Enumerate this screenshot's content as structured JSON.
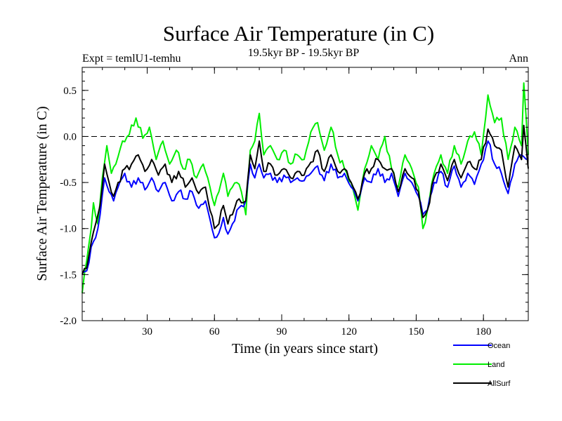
{
  "chart_data": {
    "type": "line",
    "title": "Surface Air Temperature (in C)",
    "subtitle_left": "Expt = temlU1-temhu",
    "subtitle_center": "19.5kyr BP - 19.5kyr BP",
    "subtitle_right": "Ann",
    "xlabel": "Time (in years since start)",
    "ylabel": "Surface Air Temperature (in C)",
    "xlim": [
      1,
      200
    ],
    "ylim": [
      -2.0,
      0.75
    ],
    "xticks": [
      30,
      60,
      90,
      120,
      150,
      180
    ],
    "xtick_labels": [
      "30",
      "60",
      "90",
      "120",
      "150",
      "180"
    ],
    "yticks": [
      -2.0,
      -1.5,
      -1.0,
      -0.5,
      0.0,
      0.5
    ],
    "ytick_labels": [
      "-2.0",
      "-1.5",
      "-1.0",
      "-0.5",
      "0.0",
      "0.5"
    ],
    "reference_line": 0.0,
    "legend_position": "bottom-right",
    "series": [
      {
        "name": "Ocean",
        "color": "#0000ff",
        "keypoints": [
          [
            1,
            -1.48
          ],
          [
            3,
            -1.46
          ],
          [
            5,
            -1.2
          ],
          [
            7,
            -1.1
          ],
          [
            9,
            -0.85
          ],
          [
            11,
            -0.45
          ],
          [
            13,
            -0.6
          ],
          [
            15,
            -0.7
          ],
          [
            17,
            -0.55
          ],
          [
            20,
            -0.4
          ],
          [
            23,
            -0.55
          ],
          [
            26,
            -0.45
          ],
          [
            29,
            -0.58
          ],
          [
            32,
            -0.45
          ],
          [
            35,
            -0.6
          ],
          [
            38,
            -0.5
          ],
          [
            41,
            -0.7
          ],
          [
            44,
            -0.6
          ],
          [
            47,
            -0.68
          ],
          [
            50,
            -0.6
          ],
          [
            53,
            -0.78
          ],
          [
            56,
            -0.7
          ],
          [
            58,
            -0.9
          ],
          [
            60,
            -1.1
          ],
          [
            62,
            -1.05
          ],
          [
            64,
            -0.88
          ],
          [
            66,
            -1.06
          ],
          [
            68,
            -0.95
          ],
          [
            70,
            -0.8
          ],
          [
            72,
            -0.75
          ],
          [
            74,
            -0.7
          ],
          [
            76,
            -0.3
          ],
          [
            78,
            -0.45
          ],
          [
            80,
            -0.3
          ],
          [
            82,
            -0.45
          ],
          [
            85,
            -0.4
          ],
          [
            88,
            -0.5
          ],
          [
            91,
            -0.42
          ],
          [
            94,
            -0.5
          ],
          [
            97,
            -0.45
          ],
          [
            100,
            -0.48
          ],
          [
            103,
            -0.4
          ],
          [
            106,
            -0.32
          ],
          [
            109,
            -0.48
          ],
          [
            112,
            -0.3
          ],
          [
            115,
            -0.45
          ],
          [
            118,
            -0.4
          ],
          [
            121,
            -0.55
          ],
          [
            124,
            -0.7
          ],
          [
            127,
            -0.45
          ],
          [
            130,
            -0.5
          ],
          [
            133,
            -0.35
          ],
          [
            136,
            -0.5
          ],
          [
            139,
            -0.4
          ],
          [
            142,
            -0.65
          ],
          [
            145,
            -0.4
          ],
          [
            148,
            -0.5
          ],
          [
            151,
            -0.65
          ],
          [
            153,
            -0.85
          ],
          [
            155,
            -0.8
          ],
          [
            158,
            -0.5
          ],
          [
            161,
            -0.38
          ],
          [
            164,
            -0.55
          ],
          [
            167,
            -0.32
          ],
          [
            170,
            -0.55
          ],
          [
            173,
            -0.4
          ],
          [
            176,
            -0.52
          ],
          [
            179,
            -0.3
          ],
          [
            182,
            -0.05
          ],
          [
            185,
            -0.3
          ],
          [
            188,
            -0.4
          ],
          [
            191,
            -0.62
          ],
          [
            194,
            -0.3
          ],
          [
            197,
            -0.2
          ],
          [
            200,
            -0.25
          ]
        ]
      },
      {
        "name": "Land",
        "color": "#00ee00",
        "keypoints": [
          [
            1,
            -1.7
          ],
          [
            3,
            -1.35
          ],
          [
            5,
            -1.0
          ],
          [
            6,
            -0.72
          ],
          [
            8,
            -0.95
          ],
          [
            10,
            -0.45
          ],
          [
            12,
            -0.1
          ],
          [
            14,
            -0.4
          ],
          [
            16,
            -0.3
          ],
          [
            19,
            -0.05
          ],
          [
            22,
            0.02
          ],
          [
            25,
            0.2
          ],
          [
            28,
            -0.02
          ],
          [
            31,
            0.1
          ],
          [
            34,
            -0.25
          ],
          [
            37,
            -0.05
          ],
          [
            40,
            -0.3
          ],
          [
            43,
            -0.15
          ],
          [
            46,
            -0.35
          ],
          [
            49,
            -0.25
          ],
          [
            52,
            -0.45
          ],
          [
            55,
            -0.3
          ],
          [
            58,
            -0.55
          ],
          [
            60,
            -0.75
          ],
          [
            62,
            -0.6
          ],
          [
            64,
            -0.4
          ],
          [
            66,
            -0.65
          ],
          [
            68,
            -0.55
          ],
          [
            70,
            -0.5
          ],
          [
            72,
            -0.6
          ],
          [
            74,
            -0.85
          ],
          [
            76,
            -0.15
          ],
          [
            78,
            -0.05
          ],
          [
            80,
            0.25
          ],
          [
            82,
            -0.2
          ],
          [
            85,
            -0.1
          ],
          [
            88,
            -0.25
          ],
          [
            91,
            -0.15
          ],
          [
            94,
            -0.3
          ],
          [
            97,
            -0.2
          ],
          [
            100,
            -0.25
          ],
          [
            103,
            0.05
          ],
          [
            106,
            0.15
          ],
          [
            109,
            -0.15
          ],
          [
            112,
            0.1
          ],
          [
            115,
            -0.2
          ],
          [
            118,
            -0.35
          ],
          [
            121,
            -0.5
          ],
          [
            124,
            -0.8
          ],
          [
            127,
            -0.35
          ],
          [
            130,
            -0.1
          ],
          [
            133,
            -0.25
          ],
          [
            136,
            0.0
          ],
          [
            139,
            -0.35
          ],
          [
            142,
            -0.55
          ],
          [
            145,
            -0.2
          ],
          [
            148,
            -0.35
          ],
          [
            151,
            -0.55
          ],
          [
            153,
            -1.0
          ],
          [
            155,
            -0.8
          ],
          [
            158,
            -0.4
          ],
          [
            161,
            -0.2
          ],
          [
            164,
            -0.4
          ],
          [
            167,
            -0.1
          ],
          [
            170,
            -0.3
          ],
          [
            173,
            -0.05
          ],
          [
            176,
            0.05
          ],
          [
            179,
            -0.2
          ],
          [
            182,
            0.45
          ],
          [
            185,
            0.15
          ],
          [
            188,
            0.2
          ],
          [
            191,
            -0.25
          ],
          [
            194,
            0.1
          ],
          [
            197,
            -0.1
          ],
          [
            198,
            0.58
          ],
          [
            200,
            -0.2
          ]
        ]
      },
      {
        "name": "AllSurf",
        "color": "#000000",
        "keypoints": [
          [
            1,
            -1.5
          ],
          [
            3,
            -1.43
          ],
          [
            5,
            -1.15
          ],
          [
            7,
            -0.95
          ],
          [
            9,
            -0.75
          ],
          [
            11,
            -0.3
          ],
          [
            13,
            -0.5
          ],
          [
            15,
            -0.65
          ],
          [
            17,
            -0.5
          ],
          [
            20,
            -0.35
          ],
          [
            23,
            -0.3
          ],
          [
            26,
            -0.2
          ],
          [
            29,
            -0.38
          ],
          [
            32,
            -0.25
          ],
          [
            35,
            -0.42
          ],
          [
            38,
            -0.3
          ],
          [
            41,
            -0.5
          ],
          [
            44,
            -0.38
          ],
          [
            47,
            -0.55
          ],
          [
            50,
            -0.45
          ],
          [
            53,
            -0.62
          ],
          [
            56,
            -0.55
          ],
          [
            58,
            -0.8
          ],
          [
            60,
            -1.0
          ],
          [
            62,
            -0.95
          ],
          [
            64,
            -0.75
          ],
          [
            66,
            -0.95
          ],
          [
            68,
            -0.85
          ],
          [
            70,
            -0.7
          ],
          [
            72,
            -0.72
          ],
          [
            74,
            -0.7
          ],
          [
            76,
            -0.2
          ],
          [
            78,
            -0.35
          ],
          [
            80,
            -0.05
          ],
          [
            82,
            -0.38
          ],
          [
            85,
            -0.3
          ],
          [
            88,
            -0.42
          ],
          [
            91,
            -0.35
          ],
          [
            94,
            -0.45
          ],
          [
            97,
            -0.38
          ],
          [
            100,
            -0.42
          ],
          [
            103,
            -0.28
          ],
          [
            106,
            -0.15
          ],
          [
            109,
            -0.38
          ],
          [
            112,
            -0.2
          ],
          [
            115,
            -0.38
          ],
          [
            118,
            -0.35
          ],
          [
            121,
            -0.5
          ],
          [
            124,
            -0.68
          ],
          [
            127,
            -0.4
          ],
          [
            130,
            -0.35
          ],
          [
            133,
            -0.25
          ],
          [
            136,
            -0.35
          ],
          [
            139,
            -0.35
          ],
          [
            142,
            -0.6
          ],
          [
            145,
            -0.35
          ],
          [
            148,
            -0.45
          ],
          [
            151,
            -0.6
          ],
          [
            153,
            -0.88
          ],
          [
            155,
            -0.8
          ],
          [
            158,
            -0.45
          ],
          [
            161,
            -0.3
          ],
          [
            164,
            -0.48
          ],
          [
            167,
            -0.25
          ],
          [
            170,
            -0.45
          ],
          [
            173,
            -0.28
          ],
          [
            176,
            -0.35
          ],
          [
            179,
            -0.25
          ],
          [
            182,
            0.08
          ],
          [
            185,
            -0.1
          ],
          [
            188,
            -0.15
          ],
          [
            191,
            -0.55
          ],
          [
            194,
            -0.1
          ],
          [
            197,
            -0.25
          ],
          [
            198,
            0.12
          ],
          [
            200,
            -0.35
          ]
        ]
      }
    ]
  }
}
